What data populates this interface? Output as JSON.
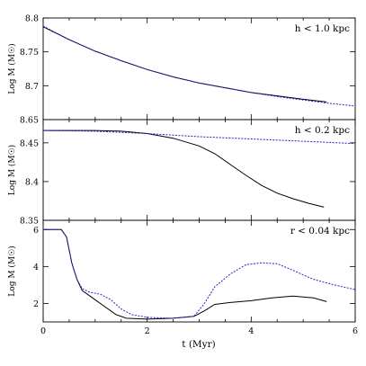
{
  "chart_data": {
    "type": "line",
    "xlabel": "t (Myr)",
    "xlim": [
      0,
      6
    ],
    "xticks": [
      0,
      2,
      4,
      6
    ],
    "shared_x": true,
    "series_colors": {
      "black": "#000000",
      "blue": "#2222cc"
    },
    "panels": [
      {
        "ylabel": "Log M (M☉)",
        "annotation": "h <  1.0 kpc",
        "ylim": [
          8.65,
          8.8
        ],
        "yticks": [
          8.65,
          8.7,
          8.75,
          8.8
        ],
        "yticklabels": [
          "8.65",
          "8.7",
          "8.75",
          "8.8"
        ],
        "series": [
          {
            "style": "solid",
            "color": "black",
            "x": [
              0,
              0.5,
              1,
              1.5,
              2,
              2.5,
              3,
              3.5,
              4,
              4.5,
              5,
              5.45
            ],
            "y": [
              8.787,
              8.768,
              8.751,
              8.737,
              8.724,
              8.713,
              8.704,
              8.697,
              8.69,
              8.685,
              8.68,
              8.676
            ]
          },
          {
            "style": "dashed",
            "color": "blue",
            "x": [
              0,
              0.5,
              1,
              1.5,
              2,
              2.5,
              3,
              3.5,
              4,
              4.5,
              5,
              5.5,
              6
            ],
            "y": [
              8.788,
              8.768,
              8.751,
              8.737,
              8.724,
              8.713,
              8.704,
              8.697,
              8.69,
              8.684,
              8.679,
              8.674,
              8.67
            ]
          }
        ]
      },
      {
        "ylabel": "Log M (M☉)",
        "annotation": "h <  0.2 kpc",
        "ylim": [
          8.35,
          8.48
        ],
        "yticks": [
          8.35,
          8.4,
          8.45
        ],
        "yticklabels": [
          "8.35",
          "8.4",
          "8.45"
        ],
        "series": [
          {
            "style": "solid",
            "color": "black",
            "x": [
              0,
              1,
              1.5,
              2,
              2.5,
              3,
              3.3,
              3.6,
              3.9,
              4.2,
              4.5,
              4.8,
              5.1,
              5.4
            ],
            "y": [
              8.466,
              8.466,
              8.465,
              8.462,
              8.456,
              8.446,
              8.436,
              8.422,
              8.408,
              8.395,
              8.385,
              8.378,
              8.372,
              8.367
            ]
          },
          {
            "style": "dashed",
            "color": "blue",
            "x": [
              0,
              1,
              2,
              3,
              4,
              5,
              6
            ],
            "y": [
              8.466,
              8.465,
              8.462,
              8.458,
              8.455,
              8.452,
              8.449
            ]
          }
        ]
      },
      {
        "ylabel": "Log M (M☉)",
        "annotation": "r < 0.04 kpc",
        "ylim": [
          1,
          6.5
        ],
        "yticks": [
          2,
          4,
          6
        ],
        "yticklabels": [
          "2",
          "4",
          "6"
        ],
        "series": [
          {
            "style": "solid",
            "color": "black",
            "x": [
              0,
              0.35,
              0.45,
              0.55,
              0.65,
              0.75,
              0.85,
              1,
              1.2,
              1.4,
              1.6,
              2,
              2.5,
              2.9,
              3.1,
              3.3,
              3.6,
              4,
              4.4,
              4.8,
              5.2,
              5.45
            ],
            "y": [
              6,
              6,
              5.6,
              4.2,
              3.3,
              2.7,
              2.5,
              2.2,
              1.8,
              1.4,
              1.2,
              1.15,
              1.2,
              1.3,
              1.6,
              1.95,
              2.05,
              2.15,
              2.3,
              2.4,
              2.3,
              2.1
            ]
          },
          {
            "style": "dashed",
            "color": "blue",
            "x": [
              0,
              0.35,
              0.45,
              0.55,
              0.65,
              0.75,
              0.9,
              1.1,
              1.3,
              1.5,
              1.7,
              2,
              2.5,
              2.9,
              3.1,
              3.3,
              3.6,
              3.9,
              4.2,
              4.5,
              4.8,
              5.2,
              5.6,
              6
            ],
            "y": [
              6,
              6,
              5.6,
              4.2,
              3.3,
              2.8,
              2.6,
              2.5,
              2.2,
              1.7,
              1.4,
              1.25,
              1.2,
              1.3,
              2.0,
              2.9,
              3.6,
              4.1,
              4.2,
              4.15,
              3.8,
              3.3,
              3.0,
              2.75
            ]
          }
        ]
      }
    ]
  }
}
